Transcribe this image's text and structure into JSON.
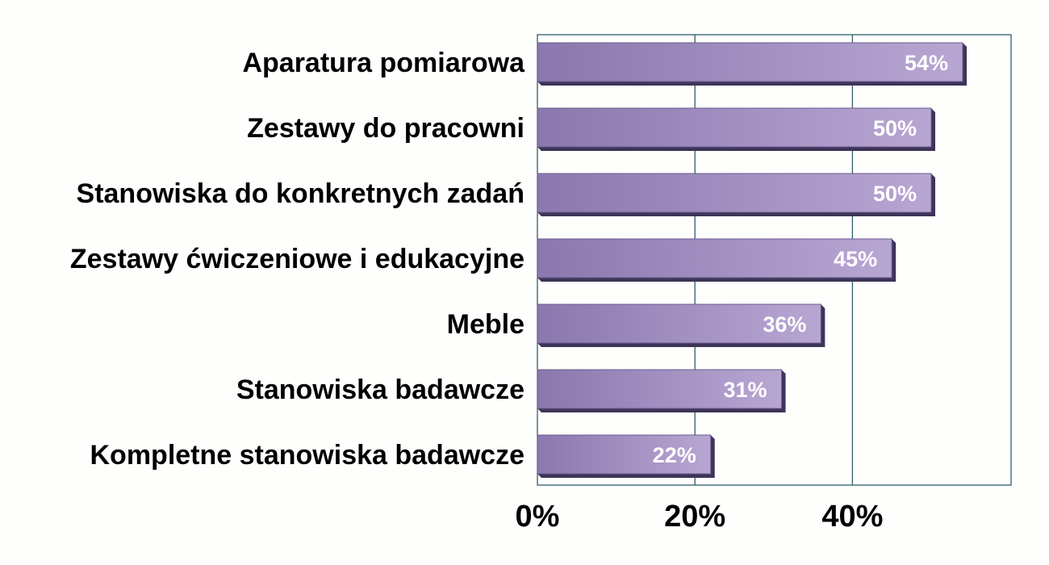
{
  "chart_data": {
    "type": "bar",
    "orientation": "horizontal",
    "categories": [
      "Aparatura pomiarowa",
      "Zestawy do pracowni ",
      "Stanowiska do konkretnych zadań",
      "Zestawy ćwiczeniowe i edukacyjne",
      "Meble",
      "Stanowiska badawcze",
      "Kompletne stanowiska badawcze"
    ],
    "values": [
      54,
      50,
      50,
      45,
      36,
      31,
      22
    ],
    "data_labels": [
      "54%",
      "50%",
      "50%",
      "45%",
      "36%",
      "31%",
      "22%"
    ],
    "x_ticks": [
      0,
      20,
      40
    ],
    "x_tick_labels": [
      "0%",
      "20%",
      "40%"
    ],
    "xlim": [
      0,
      60
    ],
    "grid": true,
    "legend": "none",
    "colors": {
      "bar_dark": "#8a78ae",
      "bar_light": "#b8a6d2",
      "bar_shadow": "#3e3458",
      "gridline": "#2f5d6d",
      "plot_border": "#2f5d6d"
    }
  }
}
